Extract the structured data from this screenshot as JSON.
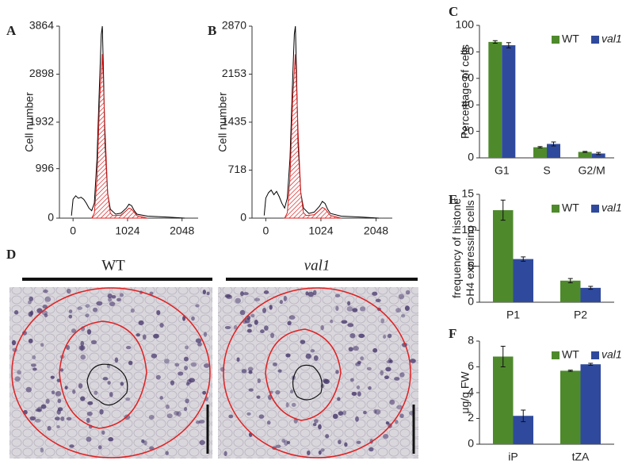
{
  "chart_data": [
    {
      "type": "line",
      "label": "A",
      "ylabel": "Cell number",
      "xlim": [
        -256,
        2350
      ],
      "xticks": [
        0,
        1024,
        2048
      ],
      "ylim": [
        0,
        3864
      ],
      "yticks": [
        0,
        996,
        1932,
        2898,
        3864
      ],
      "series": [
        {
          "color": "#000000",
          "x": [
            -30,
            0,
            50,
            100,
            150,
            200,
            250,
            300,
            350,
            400,
            450,
            500,
            530,
            550,
            570,
            600,
            650,
            700,
            800,
            900,
            1000,
            1050,
            1100,
            1150,
            1200,
            1400,
            1800,
            2100
          ],
          "values": [
            50,
            380,
            450,
            400,
            420,
            380,
            300,
            200,
            150,
            300,
            1200,
            2800,
            3700,
            3864,
            3000,
            1500,
            500,
            180,
            80,
            100,
            200,
            280,
            250,
            150,
            80,
            40,
            20,
            0
          ]
        },
        {
          "color": "#d62020",
          "hatch": true,
          "x": [
            350,
            400,
            450,
            500,
            550,
            600,
            650,
            700,
            750,
            900,
            1000,
            1050,
            1100,
            1200,
            1400
          ],
          "values": [
            0,
            100,
            800,
            2400,
            3300,
            1800,
            500,
            100,
            50,
            60,
            150,
            200,
            180,
            50,
            0
          ]
        }
      ]
    },
    {
      "type": "line",
      "label": "B",
      "ylabel": "Cell number",
      "xlim": [
        -256,
        2350
      ],
      "xticks": [
        0,
        1024,
        2048
      ],
      "ylim": [
        0,
        2870
      ],
      "yticks": [
        0,
        718,
        1435,
        2153,
        2870
      ],
      "series": [
        {
          "color": "#000000",
          "x": [
            -30,
            0,
            50,
            100,
            150,
            200,
            250,
            300,
            350,
            400,
            450,
            500,
            530,
            550,
            570,
            600,
            650,
            700,
            800,
            900,
            1000,
            1050,
            1100,
            1150,
            1200,
            1400,
            1800,
            2100
          ],
          "values": [
            40,
            300,
            380,
            420,
            350,
            400,
            320,
            220,
            150,
            300,
            900,
            2100,
            2750,
            2870,
            2200,
            1100,
            380,
            150,
            70,
            90,
            180,
            250,
            220,
            130,
            70,
            30,
            15,
            0
          ]
        },
        {
          "color": "#d62020",
          "hatch": true,
          "x": [
            350,
            400,
            450,
            500,
            550,
            600,
            650,
            700,
            750,
            900,
            1000,
            1050,
            1100,
            1200,
            1400
          ],
          "values": [
            0,
            80,
            600,
            1800,
            2450,
            1300,
            380,
            80,
            40,
            50,
            120,
            160,
            140,
            40,
            0
          ]
        }
      ]
    },
    {
      "type": "bar",
      "label": "C",
      "ylabel": [
        "Percentage of cells"
      ],
      "categories": [
        "G1",
        "S",
        "G2/M"
      ],
      "ylim": [
        0,
        100
      ],
      "yticks": [
        0,
        20,
        40,
        60,
        80,
        100
      ],
      "series": [
        {
          "name": "WT",
          "color": "#4e8a2c",
          "values": [
            87.5,
            8,
            4.5
          ],
          "errors": [
            1,
            0.5,
            0.4
          ]
        },
        {
          "name": "val1",
          "color": "#2f4a9c",
          "values": [
            85,
            10.5,
            3.3
          ],
          "errors": [
            2,
            1.5,
            0.8
          ]
        }
      ]
    },
    {
      "type": "bar",
      "label": "E",
      "ylabel": [
        "frequency of histone",
        "H4 expressing cells"
      ],
      "categories": [
        "P1",
        "P2"
      ],
      "ylim": [
        0,
        15
      ],
      "yticks": [
        0,
        5,
        10,
        15
      ],
      "series": [
        {
          "name": "WT",
          "color": "#4e8a2c",
          "values": [
            12.8,
            3.0
          ],
          "errors": [
            1.4,
            0.3
          ]
        },
        {
          "name": "val1",
          "color": "#2f4a9c",
          "values": [
            6.0,
            2.0
          ],
          "errors": [
            0.3,
            0.2
          ]
        }
      ]
    },
    {
      "type": "bar",
      "label": "F",
      "ylabel": [
        "μg/g  FW"
      ],
      "categories": [
        "iP",
        "tZA"
      ],
      "ylim": [
        0,
        8
      ],
      "yticks": [
        0,
        2,
        4,
        6,
        8
      ],
      "series": [
        {
          "name": "WT",
          "color": "#4e8a2c",
          "values": [
            6.8,
            5.7
          ],
          "errors": [
            0.8,
            0.05
          ]
        },
        {
          "name": "val1",
          "color": "#2f4a9c",
          "values": [
            2.2,
            6.2
          ],
          "errors": [
            0.45,
            0.08
          ]
        }
      ]
    }
  ],
  "micrograph": {
    "label": "D",
    "titles": [
      "WT",
      "val1"
    ]
  }
}
